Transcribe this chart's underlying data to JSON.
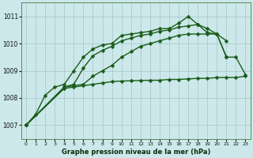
{
  "bg_color": "#cce8ea",
  "grid_color": "#aacccc",
  "line_color": "#1a5c1a",
  "title": "Graphe pression niveau de la mer (hPa)",
  "xlim": [
    -0.5,
    23.5
  ],
  "ylim": [
    1006.5,
    1011.5
  ],
  "yticks": [
    1007,
    1008,
    1009,
    1010,
    1011
  ],
  "xticks": [
    0,
    1,
    2,
    3,
    4,
    5,
    6,
    7,
    8,
    9,
    10,
    11,
    12,
    13,
    14,
    15,
    16,
    17,
    18,
    19,
    20,
    21,
    22,
    23
  ],
  "lines": [
    {
      "x": [
        0,
        1,
        2,
        3,
        4,
        5,
        6,
        7,
        8,
        9,
        10,
        11,
        12,
        13,
        14,
        15,
        16,
        17,
        18,
        19,
        20,
        21
      ],
      "y": [
        1007.0,
        1007.4,
        1008.1,
        1008.4,
        1008.5,
        1009.0,
        1009.5,
        1009.8,
        1009.95,
        1010.0,
        1010.3,
        1010.35,
        1010.4,
        1010.45,
        1010.55,
        1010.55,
        1010.75,
        1011.0,
        1010.7,
        1010.55,
        1010.35,
        1010.1
      ]
    },
    {
      "x": [
        0,
        4,
        5,
        6,
        7,
        8,
        9,
        10,
        11,
        12,
        13,
        14,
        15,
        16,
        17,
        18,
        19,
        20,
        21
      ],
      "y": [
        1007.0,
        1008.4,
        1008.5,
        1009.1,
        1009.55,
        1009.75,
        1009.9,
        1010.1,
        1010.2,
        1010.3,
        1010.35,
        1010.45,
        1010.5,
        1010.6,
        1010.65,
        1010.7,
        1010.4,
        1010.35,
        1009.5
      ]
    },
    {
      "x": [
        0,
        4,
        5,
        6,
        7,
        8,
        9,
        10,
        11,
        12,
        13,
        14,
        15,
        16,
        17,
        18,
        19,
        20,
        21,
        22,
        23
      ],
      "y": [
        1007.0,
        1008.4,
        1008.45,
        1008.5,
        1008.8,
        1009.0,
        1009.2,
        1009.5,
        1009.7,
        1009.9,
        1010.0,
        1010.1,
        1010.2,
        1010.3,
        1010.35,
        1010.35,
        1010.35,
        1010.35,
        1009.5,
        1009.5,
        1008.85
      ]
    },
    {
      "x": [
        0,
        4,
        5,
        6,
        7,
        8,
        9,
        10,
        11,
        12,
        13,
        14,
        15,
        16,
        17,
        18,
        19,
        20,
        21,
        22,
        23
      ],
      "y": [
        1007.0,
        1008.35,
        1008.4,
        1008.45,
        1008.5,
        1008.55,
        1008.6,
        1008.62,
        1008.63,
        1008.64,
        1008.65,
        1008.65,
        1008.68,
        1008.68,
        1008.7,
        1008.72,
        1008.72,
        1008.75,
        1008.75,
        1008.75,
        1008.8
      ]
    }
  ]
}
